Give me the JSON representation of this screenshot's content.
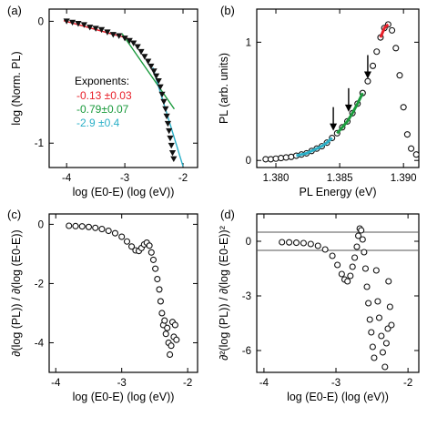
{
  "chart_data": [
    {
      "type": "scatter",
      "panel_label": "(a)",
      "xlabel": "log (E0-E) (log (eV))",
      "ylabel": "log (Norm. PL)",
      "xlim": [
        -4.3,
        -1.75
      ],
      "ylim": [
        -1.2,
        0.1
      ],
      "xticks": [
        {
          "v": -4,
          "t": "-4"
        },
        {
          "v": -3,
          "t": "-3"
        },
        {
          "v": -2,
          "t": "-2"
        }
      ],
      "yticks": [
        {
          "v": 0,
          "t": "0"
        },
        {
          "v": -1,
          "t": "-1"
        }
      ],
      "marker": "down-triangle",
      "points": [
        [
          -4.0,
          0.0
        ],
        [
          -3.9,
          -0.01
        ],
        [
          -3.8,
          -0.02
        ],
        [
          -3.7,
          -0.03
        ],
        [
          -3.6,
          -0.05
        ],
        [
          -3.5,
          -0.06
        ],
        [
          -3.4,
          -0.07
        ],
        [
          -3.3,
          -0.09
        ],
        [
          -3.2,
          -0.11
        ],
        [
          -3.1,
          -0.12
        ],
        [
          -3.0,
          -0.14
        ],
        [
          -2.92,
          -0.16
        ],
        [
          -2.85,
          -0.18
        ],
        [
          -2.78,
          -0.21
        ],
        [
          -2.72,
          -0.25
        ],
        [
          -2.66,
          -0.29
        ],
        [
          -2.6,
          -0.33
        ],
        [
          -2.55,
          -0.37
        ],
        [
          -2.5,
          -0.41
        ],
        [
          -2.46,
          -0.45
        ],
        [
          -2.42,
          -0.49
        ],
        [
          -2.39,
          -0.54
        ],
        [
          -2.36,
          -0.6
        ],
        [
          -2.33,
          -0.66
        ],
        [
          -2.3,
          -0.72
        ],
        [
          -2.28,
          -0.78
        ],
        [
          -2.26,
          -0.84
        ],
        [
          -2.24,
          -0.9
        ],
        [
          -2.22,
          -0.96
        ],
        [
          -2.2,
          -1.02
        ],
        [
          -2.18,
          -1.08
        ],
        [
          -2.16,
          -1.13
        ]
      ],
      "fits": [
        {
          "color": "#e8202a",
          "x": [
            -4.05,
            -2.95
          ],
          "y": [
            0.005,
            -0.14
          ]
        },
        {
          "color": "#1a9a3c",
          "x": [
            -3.05,
            -2.15
          ],
          "y": [
            -0.1,
            -0.72
          ]
        },
        {
          "color": "#2bb0c8",
          "x": [
            -2.52,
            -2.0
          ],
          "y": [
            -0.38,
            -1.19
          ]
        }
      ],
      "annotation": {
        "title": "Exponents:",
        "items": [
          {
            "text": "-0.13 ±0.03",
            "color": "#e8202a"
          },
          {
            "text": "-0.79±0.07",
            "color": "#1a9a3c"
          },
          {
            "text": "-2.9  ±0.4",
            "color": "#2bb0c8"
          }
        ]
      }
    },
    {
      "type": "scatter",
      "panel_label": "(b)",
      "xlabel": "PL Energy (eV)",
      "ylabel": "PL (arb. units)",
      "xlim": [
        1.3785,
        1.3912
      ],
      "ylim": [
        -0.06,
        1.28
      ],
      "xticks": [
        {
          "v": 1.38,
          "t": "1.380"
        },
        {
          "v": 1.385,
          "t": "1.385"
        },
        {
          "v": 1.39,
          "t": "1.390"
        }
      ],
      "yticks": [
        {
          "v": 0,
          "t": "0"
        },
        {
          "v": 1,
          "t": "1"
        }
      ],
      "marker": "open-circle",
      "points": [
        [
          1.3792,
          0.01
        ],
        [
          1.3796,
          0.01
        ],
        [
          1.38,
          0.015
        ],
        [
          1.3804,
          0.02
        ],
        [
          1.3808,
          0.025
        ],
        [
          1.3812,
          0.03
        ],
        [
          1.3816,
          0.04
        ],
        [
          1.382,
          0.05
        ],
        [
          1.3824,
          0.06
        ],
        [
          1.3828,
          0.08
        ],
        [
          1.3832,
          0.1
        ],
        [
          1.3836,
          0.12
        ],
        [
          1.384,
          0.15
        ],
        [
          1.3844,
          0.19
        ],
        [
          1.3848,
          0.23
        ],
        [
          1.3852,
          0.28
        ],
        [
          1.3856,
          0.33
        ],
        [
          1.386,
          0.4
        ],
        [
          1.3864,
          0.48
        ],
        [
          1.3868,
          0.57
        ],
        [
          1.3872,
          0.67
        ],
        [
          1.3876,
          0.8
        ],
        [
          1.3879,
          0.92
        ],
        [
          1.3882,
          1.04
        ],
        [
          1.3885,
          1.12
        ],
        [
          1.3888,
          1.15
        ],
        [
          1.3891,
          1.1
        ],
        [
          1.3894,
          0.95
        ],
        [
          1.3897,
          0.72
        ],
        [
          1.39,
          0.45
        ],
        [
          1.3903,
          0.22
        ],
        [
          1.3906,
          0.1
        ],
        [
          1.391,
          0.05
        ]
      ],
      "fit_segments": [
        {
          "color": "#2bb0c8",
          "x_range": [
            1.3815,
            1.3845
          ]
        },
        {
          "color": "#1a9a3c",
          "x_range": [
            1.3846,
            1.3868
          ]
        },
        {
          "color": "#e8202a",
          "x_range": [
            1.3881,
            1.3888
          ]
        }
      ],
      "arrows": [
        {
          "x": 1.3845,
          "y": 0.22
        },
        {
          "x": 1.3857,
          "y": 0.38
        },
        {
          "x": 1.3872,
          "y": 0.66
        }
      ]
    },
    {
      "type": "scatter",
      "panel_label": "(c)",
      "xlabel": "log (E0-E) (log (eV))",
      "ylabel": "∂(log (PL)) / ∂(log (E0-E))",
      "xlim": [
        -4.1,
        -1.85
      ],
      "ylim": [
        -5.0,
        0.35
      ],
      "xticks": [
        {
          "v": -4,
          "t": "-4"
        },
        {
          "v": -3,
          "t": "-3"
        },
        {
          "v": -2,
          "t": "-2"
        }
      ],
      "yticks": [
        {
          "v": 0,
          "t": "0"
        },
        {
          "v": -2,
          "t": "-2"
        },
        {
          "v": -4,
          "t": "-4"
        }
      ],
      "marker": "open-circle",
      "points": [
        [
          -3.8,
          -0.05
        ],
        [
          -3.7,
          -0.06
        ],
        [
          -3.6,
          -0.07
        ],
        [
          -3.5,
          -0.09
        ],
        [
          -3.4,
          -0.12
        ],
        [
          -3.3,
          -0.16
        ],
        [
          -3.2,
          -0.22
        ],
        [
          -3.1,
          -0.3
        ],
        [
          -3.0,
          -0.42
        ],
        [
          -2.92,
          -0.58
        ],
        [
          -2.85,
          -0.75
        ],
        [
          -2.79,
          -0.88
        ],
        [
          -2.74,
          -0.9
        ],
        [
          -2.7,
          -0.8
        ],
        [
          -2.66,
          -0.68
        ],
        [
          -2.62,
          -0.62
        ],
        [
          -2.58,
          -0.72
        ],
        [
          -2.55,
          -0.95
        ],
        [
          -2.52,
          -1.2
        ],
        [
          -2.49,
          -1.5
        ],
        [
          -2.46,
          -1.85
        ],
        [
          -2.43,
          -2.2
        ],
        [
          -2.41,
          -2.6
        ],
        [
          -2.39,
          -3.0
        ],
        [
          -2.37,
          -3.4
        ],
        [
          -2.35,
          -3.25
        ],
        [
          -2.33,
          -3.7
        ],
        [
          -2.31,
          -3.5
        ],
        [
          -2.29,
          -4.0
        ],
        [
          -2.27,
          -4.4
        ],
        [
          -2.25,
          -4.1
        ],
        [
          -2.23,
          -3.3
        ],
        [
          -2.21,
          -3.8
        ],
        [
          -2.19,
          -3.4
        ],
        [
          -2.17,
          -3.9
        ]
      ]
    },
    {
      "type": "scatter",
      "panel_label": "(d)",
      "xlabel": "log (E0-E) (log (eV))",
      "ylabel": "∂²(log (PL)) / ∂(log (E0-E))²",
      "xlim": [
        -4.1,
        -1.85
      ],
      "ylim": [
        -7.2,
        1.5
      ],
      "xticks": [
        {
          "v": -4,
          "t": "-4"
        },
        {
          "v": -3,
          "t": "-3"
        },
        {
          "v": -2,
          "t": "-2"
        }
      ],
      "yticks": [
        {
          "v": 0,
          "t": "0"
        },
        {
          "v": -3,
          "t": "-3"
        },
        {
          "v": -6,
          "t": "-6"
        }
      ],
      "hlines": [
        0.5,
        -0.5
      ],
      "marker": "open-circle",
      "points": [
        [
          -3.75,
          -0.05
        ],
        [
          -3.65,
          -0.06
        ],
        [
          -3.55,
          -0.08
        ],
        [
          -3.45,
          -0.1
        ],
        [
          -3.35,
          -0.15
        ],
        [
          -3.25,
          -0.25
        ],
        [
          -3.15,
          -0.45
        ],
        [
          -3.05,
          -0.8
        ],
        [
          -2.98,
          -1.3
        ],
        [
          -2.92,
          -1.8
        ],
        [
          -2.88,
          -2.1
        ],
        [
          -2.84,
          -2.2
        ],
        [
          -2.8,
          -1.9
        ],
        [
          -2.77,
          -1.4
        ],
        [
          -2.74,
          -0.9
        ],
        [
          -2.71,
          -0.3
        ],
        [
          -2.69,
          0.3
        ],
        [
          -2.67,
          0.7
        ],
        [
          -2.65,
          0.6
        ],
        [
          -2.63,
          0.1
        ],
        [
          -2.61,
          -0.6
        ],
        [
          -2.59,
          -1.5
        ],
        [
          -2.57,
          -2.5
        ],
        [
          -2.55,
          -3.4
        ],
        [
          -2.53,
          -4.3
        ],
        [
          -2.51,
          -5.0
        ],
        [
          -2.49,
          -5.8
        ],
        [
          -2.47,
          -6.4
        ],
        [
          -2.44,
          -1.6
        ],
        [
          -2.42,
          -3.3
        ],
        [
          -2.4,
          -4.2
        ],
        [
          -2.37,
          -5.2
        ],
        [
          -2.35,
          -6.1
        ],
        [
          -2.32,
          -6.9
        ],
        [
          -2.3,
          -5.6
        ],
        [
          -2.28,
          -4.8
        ],
        [
          -2.27,
          -2.2
        ],
        [
          -2.25,
          -3.6
        ],
        [
          -2.23,
          -4.6
        ]
      ]
    }
  ]
}
